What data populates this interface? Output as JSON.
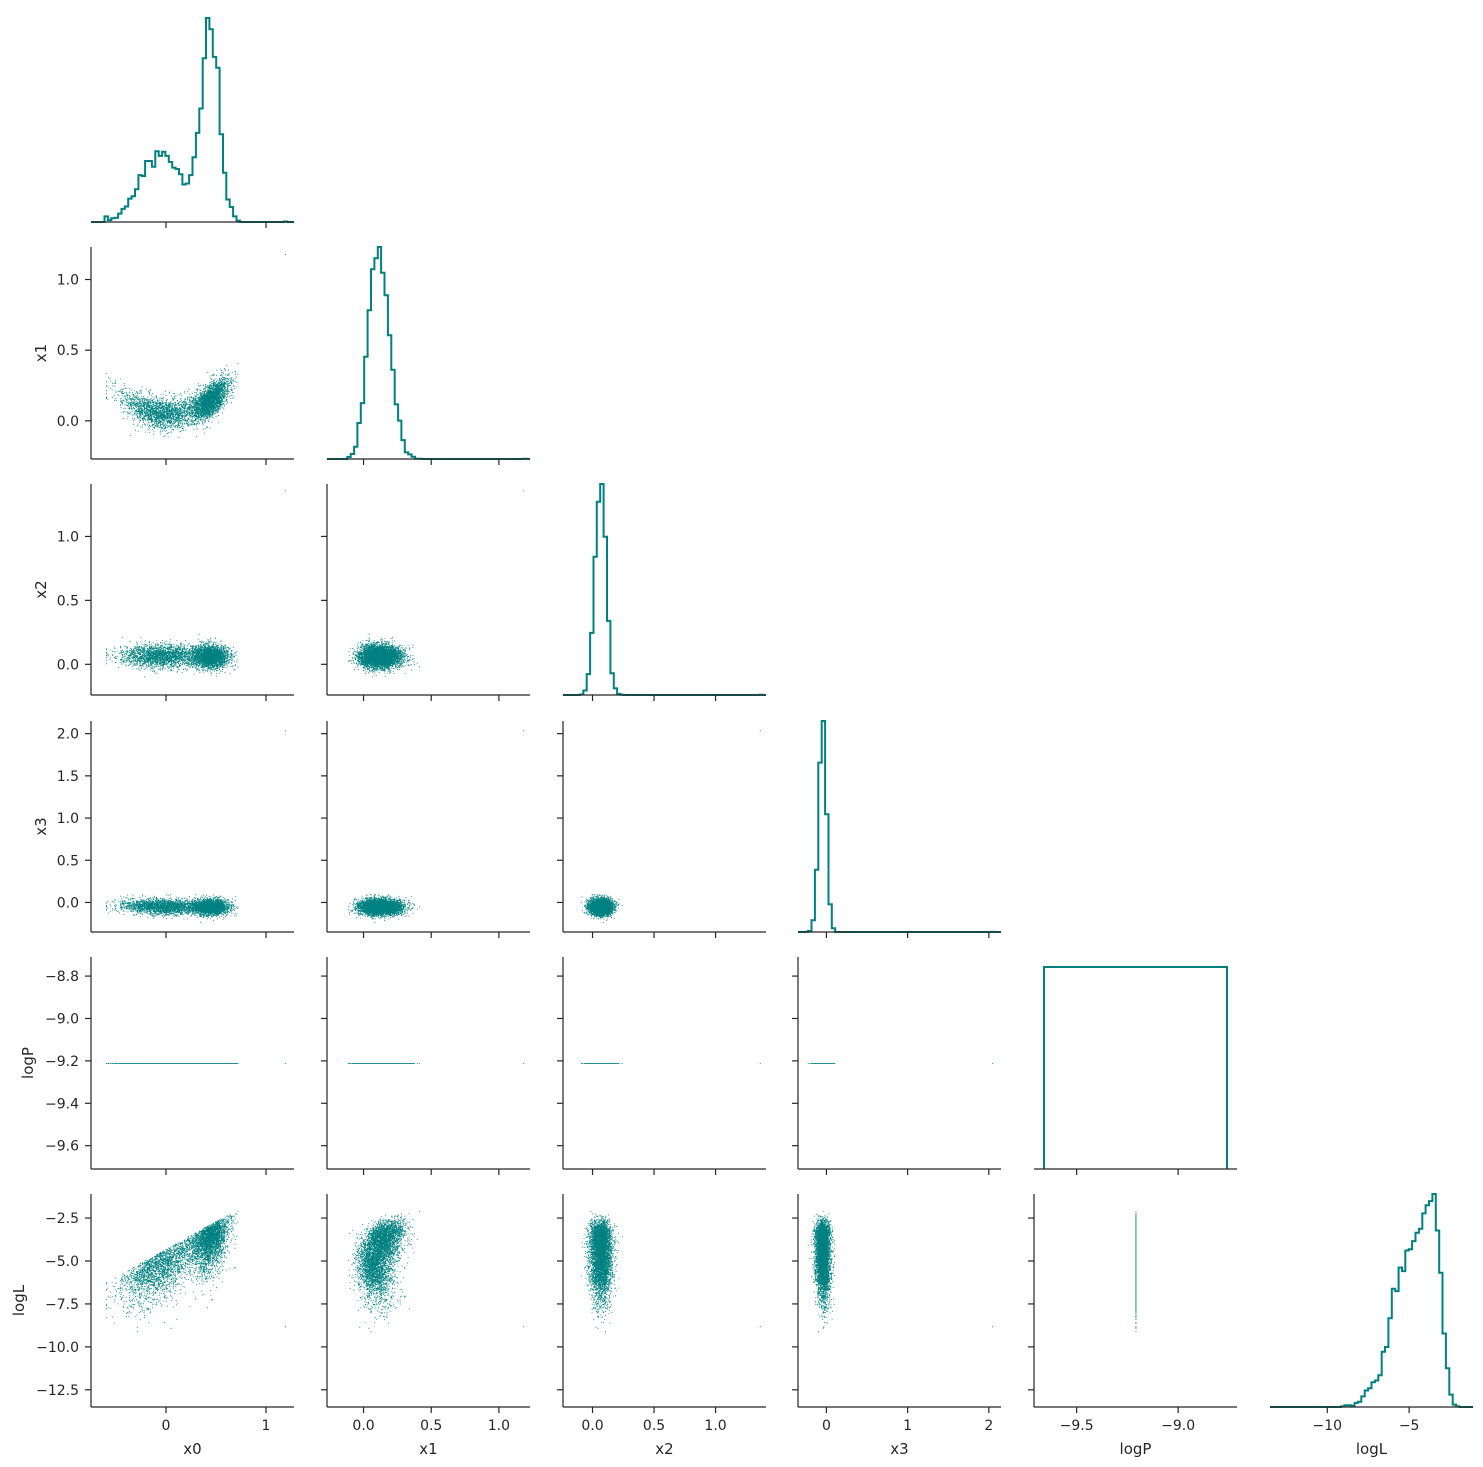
{
  "chart_data": {
    "type": "scatter",
    "title": "",
    "layout": "corner-plot",
    "color": "#008080",
    "grid": false,
    "variables": [
      {
        "name": "x0",
        "range": [
          -0.75,
          1.28
        ],
        "ticks": [
          0,
          1
        ],
        "tick_labels": [
          "0",
          "1"
        ]
      },
      {
        "name": "x1",
        "range": [
          -0.27,
          1.23
        ],
        "ticks": [
          0.0,
          0.5,
          1.0
        ],
        "tick_labels": [
          "0.0",
          "0.5",
          "1.0"
        ]
      },
      {
        "name": "x2",
        "range": [
          -0.24,
          1.41
        ],
        "ticks": [
          0.0,
          0.5,
          1.0
        ],
        "tick_labels": [
          "0.0",
          "0.5",
          "1.0"
        ]
      },
      {
        "name": "x3",
        "range": [
          -0.35,
          2.15
        ],
        "ticks": [
          0,
          1,
          2
        ],
        "tick_labels": [
          "0",
          "1",
          "2"
        ],
        "y_ticks": [
          0.0,
          0.5,
          1.0,
          1.5,
          2.0
        ],
        "y_tick_labels": [
          "0.0",
          "0.5",
          "1.0",
          "1.5",
          "2.0"
        ]
      },
      {
        "name": "logP",
        "range": [
          -9.71,
          -8.71
        ],
        "ticks": [
          -9.5,
          -9.0
        ],
        "tick_labels": [
          "−9.5",
          "−9.0"
        ],
        "y_ticks": [
          -9.6,
          -9.4,
          -9.2,
          -9.0,
          -8.8
        ],
        "y_tick_labels": [
          "−9.6",
          "−9.4",
          "−9.2",
          "−9.0",
          "−8.8"
        ]
      },
      {
        "name": "logL",
        "range": [
          -13.5,
          -1.1
        ],
        "ticks": [
          -10,
          -5
        ],
        "tick_labels": [
          "−10",
          "−5"
        ],
        "y_ticks": [
          -12.5,
          -10.0,
          -7.5,
          -5.0,
          -2.5
        ],
        "y_tick_labels": [
          "−12.5",
          "−10.0",
          "−7.5",
          "−5.0",
          "−2.5"
        ]
      }
    ],
    "diagonal_histograms": {
      "x0": {
        "bin_edges_range": [
          -0.75,
          1.28
        ],
        "peak_at": 0.4,
        "shape": "left-skewed",
        "outlier_at": 1.19
      },
      "x1": {
        "peak_at": 0.15,
        "shape": "gaussian",
        "outlier_at": 1.18
      },
      "x2": {
        "peak_at": 0.07,
        "shape": "narrow-gaussian",
        "outlier_at": 1.36
      },
      "x3": {
        "peak_at": -0.05,
        "shape": "narrow-gaussian",
        "outlier_at": 2.04
      },
      "logP": {
        "constant_value": -9.21,
        "shape": "single-bin"
      },
      "logL": {
        "peak_at": -3.5,
        "shape": "left-skewed",
        "min": -13.0,
        "max": -2.0
      }
    },
    "scatter_summary": {
      "n_points": 5000,
      "logP_value": -9.21,
      "x0_x1_relation": "parabolic",
      "x0_logL_relation": "increasing",
      "x1_logL_relation": "increasing",
      "outlier_point": {
        "x0": 1.19,
        "x1": 1.18,
        "x2": 1.36,
        "x3": 2.04,
        "logP": -9.21,
        "logL": -8.8
      }
    }
  }
}
